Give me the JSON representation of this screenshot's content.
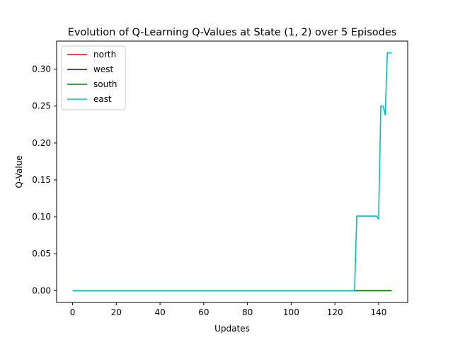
{
  "chart_data": {
    "type": "line",
    "title": "Evolution of Q-Learning Q-Values at State (1, 2) over 5 Episodes",
    "xlabel": "Updates",
    "ylabel": "Q-Value",
    "xlim": [
      -7.3,
      153.3
    ],
    "ylim": [
      -0.016,
      0.338
    ],
    "xticks": [
      0,
      20,
      40,
      60,
      80,
      100,
      120,
      140
    ],
    "yticks": [
      0.0,
      0.05,
      0.1,
      0.15,
      0.2,
      0.25,
      0.3
    ],
    "xtick_labels": [
      "0",
      "20",
      "40",
      "60",
      "80",
      "100",
      "120",
      "140"
    ],
    "ytick_labels": [
      "0.00",
      "0.05",
      "0.10",
      "0.15",
      "0.20",
      "0.25",
      "0.30"
    ],
    "grid": false,
    "legend": {
      "position": "top-left",
      "entries": [
        "north",
        "west",
        "south",
        "east"
      ]
    },
    "series": [
      {
        "name": "north",
        "color": "#ff0000",
        "x": [
          0,
          146
        ],
        "y": [
          0.0,
          0.0
        ]
      },
      {
        "name": "west",
        "color": "#0000ff",
        "x": [
          0,
          146
        ],
        "y": [
          0.0,
          0.0
        ]
      },
      {
        "name": "south",
        "color": "#008000",
        "x": [
          0,
          146
        ],
        "y": [
          0.0,
          0.0
        ]
      },
      {
        "name": "east",
        "color": "#00bfbf",
        "x": [
          0,
          129,
          130,
          134,
          139,
          140,
          141,
          142,
          143,
          144,
          145,
          146
        ],
        "y": [
          0.0,
          0.0,
          0.101,
          0.101,
          0.101,
          0.097,
          0.25,
          0.25,
          0.238,
          0.322,
          0.322,
          0.322
        ]
      }
    ]
  }
}
